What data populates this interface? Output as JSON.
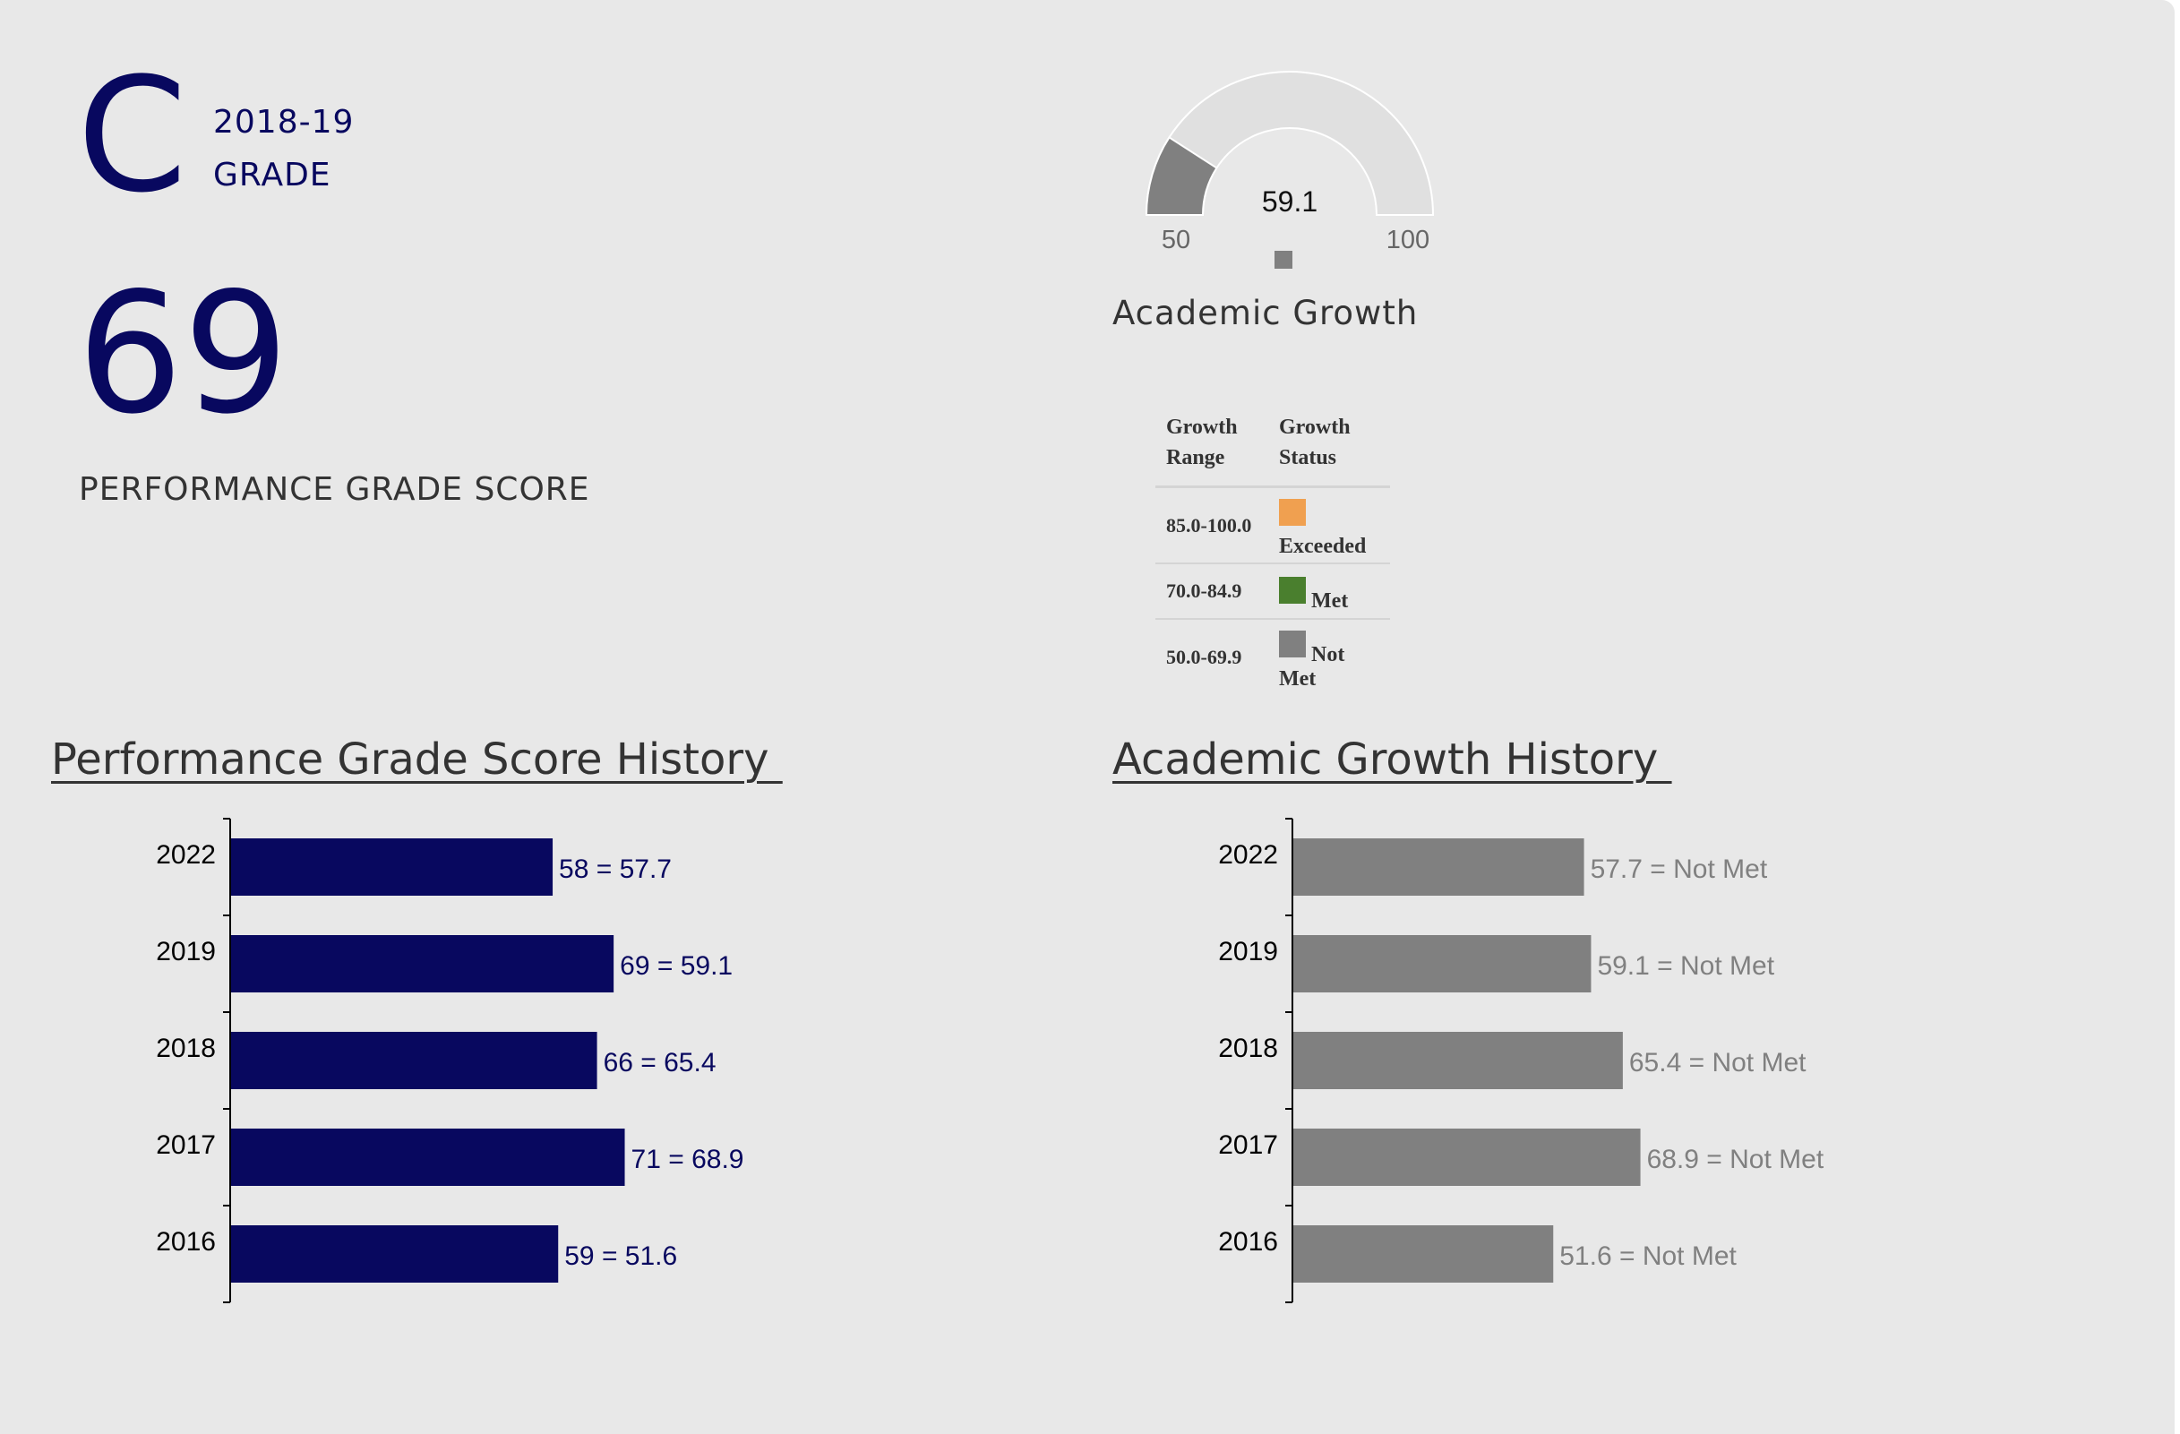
{
  "grade": {
    "letter": "C",
    "year": "2018-19",
    "label": "GRADE",
    "score": "69",
    "score_label": "PERFORMANCE GRADE SCORE"
  },
  "gauge": {
    "value": 59.1,
    "value_label": "59.1",
    "min": 50,
    "max": 100,
    "min_label": "50",
    "max_label": "100",
    "title": "Academic Growth",
    "fill_color": "#808080",
    "track_color": "#e0e0e0"
  },
  "legend": {
    "headers": [
      "Growth Range",
      "Growth Status"
    ],
    "rows": [
      {
        "range": "85.0-100.0",
        "status": "Exceeded",
        "color": "#f0a050"
      },
      {
        "range": "70.0-84.9",
        "status": "Met",
        "color": "#4a7f2e"
      },
      {
        "range": "50.0-69.9",
        "status": "Not Met",
        "color": "#808080"
      }
    ]
  },
  "sections": {
    "pgs_title": "Performance Grade Score History ",
    "growth_title": "Academic Growth History "
  },
  "chart_data": [
    {
      "type": "bar",
      "orientation": "horizontal",
      "title": "Performance Grade Score History",
      "categories": [
        "2022",
        "2019",
        "2018",
        "2017",
        "2016"
      ],
      "values": [
        58,
        69,
        66,
        71,
        59
      ],
      "data_labels": [
        "58 = 57.7",
        "69 = 59.1",
        "66 = 65.4",
        "71 = 68.9",
        "59 = 51.6"
      ],
      "color": "#08085f",
      "xlim": [
        0,
        126
      ]
    },
    {
      "type": "bar",
      "orientation": "horizontal",
      "title": "Academic Growth History",
      "categories": [
        "2022",
        "2019",
        "2018",
        "2017",
        "2016"
      ],
      "values": [
        57.7,
        59.1,
        65.4,
        68.9,
        51.6
      ],
      "data_labels": [
        "57.7 = Not Met",
        "59.1 = Not Met",
        "65.4 = Not Met",
        "68.9 = Not Met",
        "51.6 = Not Met"
      ],
      "color": "#808080",
      "xlim": [
        0,
        112
      ]
    }
  ]
}
